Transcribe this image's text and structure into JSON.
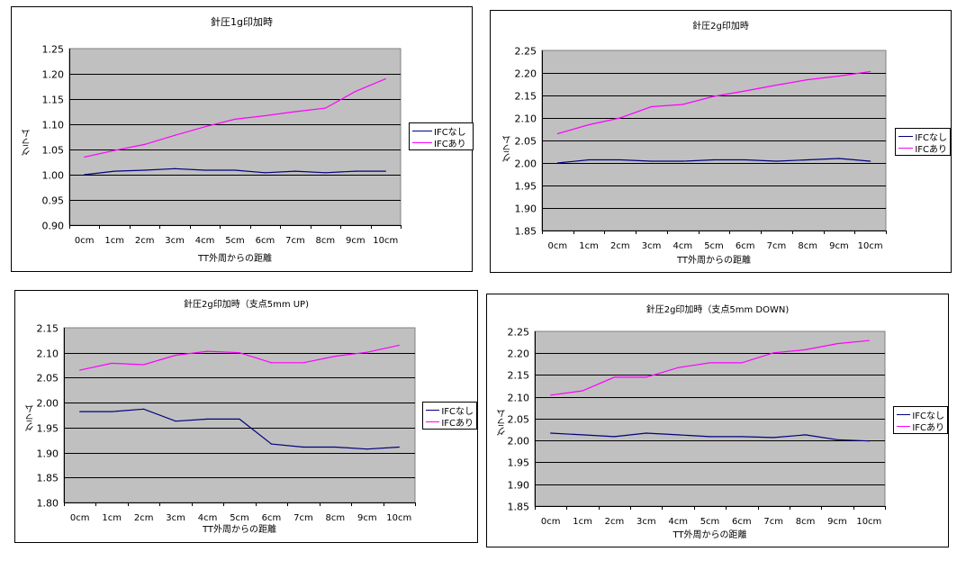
{
  "colors": {
    "plot_bg": "#c0c0c0",
    "grid": "#000000",
    "series_without": "#000080",
    "series_with": "#ff00ff"
  },
  "chart_data": [
    {
      "type": "line",
      "title": "針圧1g印加時",
      "xlabel": "TT外周からの距離",
      "ylabel": "グラム",
      "categories": [
        "0cm",
        "1cm",
        "2cm",
        "3cm",
        "4cm",
        "5cm",
        "6cm",
        "7cm",
        "8cm",
        "9cm",
        "10cm"
      ],
      "ylim": [
        0.9,
        1.25
      ],
      "ystep": 0.05,
      "yticks": [
        "0.90",
        "0.95",
        "1.00",
        "1.05",
        "1.10",
        "1.15",
        "1.20",
        "1.25"
      ],
      "grid": true,
      "legend": "right",
      "series": [
        {
          "name": "IFCなし",
          "values": [
            1.0,
            1.007,
            1.009,
            1.012,
            1.009,
            1.009,
            1.004,
            1.007,
            1.004,
            1.007,
            1.007
          ]
        },
        {
          "name": "IFCあり",
          "values": [
            1.035,
            1.048,
            1.06,
            1.078,
            1.095,
            1.11,
            1.117,
            1.125,
            1.132,
            1.165,
            1.19
          ]
        }
      ]
    },
    {
      "type": "line",
      "title": "針圧2g印加時",
      "xlabel": "TT外周からの距離",
      "ylabel": "グラム",
      "categories": [
        "0cm",
        "1cm",
        "2cm",
        "3cm",
        "4cm",
        "5cm",
        "6cm",
        "7cm",
        "8cm",
        "9cm",
        "10cm"
      ],
      "ylim": [
        1.85,
        2.25
      ],
      "ystep": 0.05,
      "yticks": [
        "1.85",
        "1.90",
        "1.95",
        "2.00",
        "2.05",
        "2.10",
        "2.15",
        "2.20",
        "2.25"
      ],
      "grid": true,
      "legend": "right",
      "series": [
        {
          "name": "IFCなし",
          "values": [
            2.0,
            2.007,
            2.007,
            2.004,
            2.004,
            2.007,
            2.007,
            2.004,
            2.007,
            2.01,
            2.004
          ]
        },
        {
          "name": "IFCあり",
          "values": [
            2.065,
            2.085,
            2.1,
            2.125,
            2.13,
            2.148,
            2.16,
            2.173,
            2.185,
            2.193,
            2.203
          ]
        }
      ]
    },
    {
      "type": "line",
      "title": "針圧2g印加時（支点5mm UP)",
      "xlabel": "TT外周からの距離",
      "ylabel": "グラム",
      "categories": [
        "0cm",
        "1cm",
        "2cm",
        "3cm",
        "4cm",
        "5cm",
        "6cm",
        "7cm",
        "8cm",
        "9cm",
        "10cm"
      ],
      "ylim": [
        1.8,
        2.15
      ],
      "ystep": 0.05,
      "yticks": [
        "1.80",
        "1.85",
        "1.90",
        "1.95",
        "2.00",
        "2.05",
        "2.10",
        "2.15"
      ],
      "grid": true,
      "legend": "right",
      "series": [
        {
          "name": "IFCなし",
          "values": [
            1.982,
            1.982,
            1.987,
            1.963,
            1.967,
            1.967,
            1.917,
            1.911,
            1.911,
            1.907,
            1.911
          ]
        },
        {
          "name": "IFCあり",
          "values": [
            2.065,
            2.079,
            2.076,
            2.095,
            2.103,
            2.1,
            2.08,
            2.08,
            2.093,
            2.101,
            2.115
          ]
        }
      ]
    },
    {
      "type": "line",
      "title": "針圧2g印加時（支点5mm DOWN)",
      "xlabel": "TT外周からの距離",
      "ylabel": "グラム",
      "categories": [
        "0cm",
        "1cm",
        "2cm",
        "3cm",
        "4cm",
        "5cm",
        "6cm",
        "7cm",
        "8cm",
        "9cm",
        "10cm"
      ],
      "ylim": [
        1.85,
        2.25
      ],
      "ystep": 0.05,
      "yticks": [
        "1.85",
        "1.90",
        "1.95",
        "2.00",
        "2.05",
        "2.10",
        "2.15",
        "2.20",
        "2.25"
      ],
      "grid": true,
      "legend": "right",
      "series": [
        {
          "name": "IFCなし",
          "values": [
            2.017,
            2.013,
            2.009,
            2.017,
            2.013,
            2.009,
            2.009,
            2.007,
            2.013,
            2.002,
            1.999
          ]
        },
        {
          "name": "IFCあり",
          "values": [
            2.104,
            2.114,
            2.145,
            2.145,
            2.167,
            2.178,
            2.178,
            2.201,
            2.208,
            2.222,
            2.229
          ]
        }
      ]
    }
  ]
}
